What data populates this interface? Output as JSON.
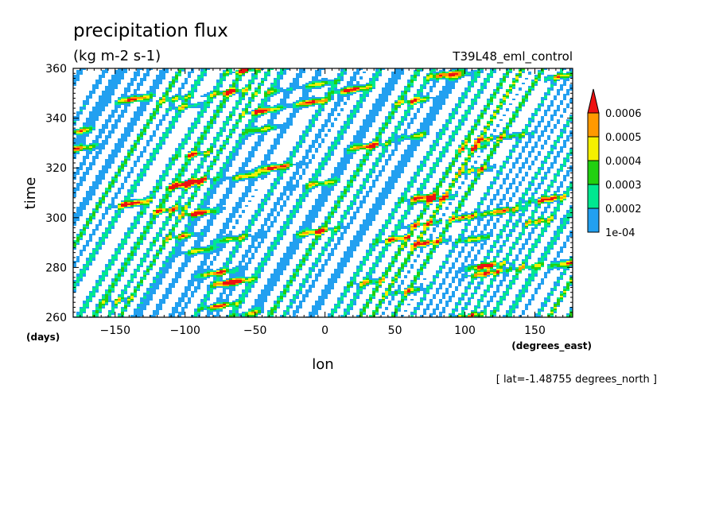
{
  "chart_data": {
    "type": "heatmap",
    "title": "precipitation flux",
    "subtitle": "(kg m-2 s-1)",
    "run_label": "T39L48_eml_control",
    "xlabel": "lon",
    "ylabel": "time",
    "x_units": "(degrees_east)",
    "y_units": "(days)",
    "footnote": "[ lat=-1.48755 degrees_north ]",
    "xlim": [
      -180,
      177
    ],
    "ylim": [
      260,
      360
    ],
    "x_ticks": [
      -150,
      -100,
      -50,
      0,
      50,
      100,
      150
    ],
    "y_ticks": [
      260,
      280,
      300,
      320,
      340,
      360
    ],
    "x_tick_labels": [
      "−150",
      "−100",
      "−50",
      "0",
      "50",
      "100",
      "150"
    ],
    "y_tick_labels": [
      "260",
      "280",
      "300",
      "320",
      "340",
      "360"
    ],
    "grid": false,
    "legend_placement": "right",
    "colorbar": {
      "labels": [
        "1e-04",
        "0.0002",
        "0.0003",
        "0.0004",
        "0.0005",
        "0.0006"
      ],
      "levels": [
        0.0001,
        0.0002,
        0.0003,
        0.0004,
        0.0005,
        0.0006
      ],
      "colors": [
        "#22a0f0",
        "#00e890",
        "#22d010",
        "#f5f000",
        "#ff9900",
        "#ee1111"
      ],
      "extend": "max"
    },
    "field_pattern": {
      "description_only_in_script": true
    }
  }
}
